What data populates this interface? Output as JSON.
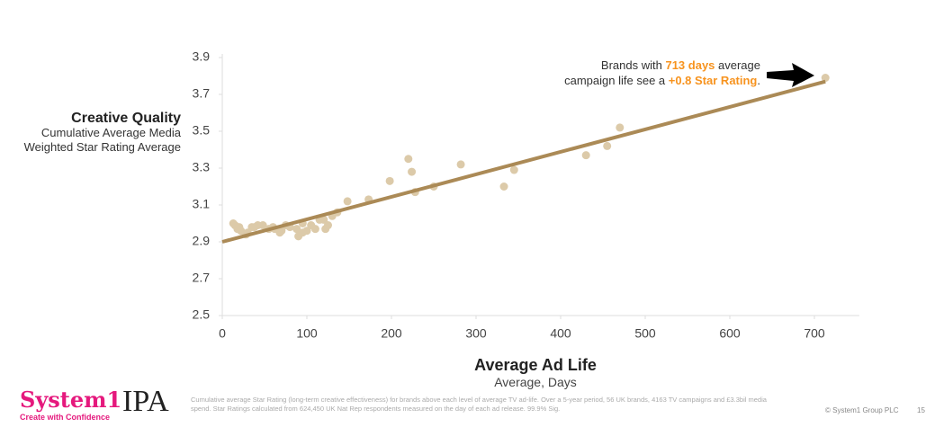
{
  "chart_data": {
    "type": "scatter",
    "ylabel": "Creative Quality",
    "ylabel_sub": [
      "Cumulative Average Media",
      "Weighted Star Rating Average"
    ],
    "xlabel": "Average Ad Life",
    "xlabel_sub": "Average, Days",
    "x": [
      713,
      470,
      455,
      430,
      345,
      333,
      282,
      250,
      228,
      224,
      220,
      198,
      173,
      148,
      136,
      130,
      125,
      122,
      120,
      115,
      110,
      105,
      100,
      95,
      95,
      90,
      88,
      80,
      75,
      70,
      68,
      62,
      60,
      55,
      48,
      42,
      38,
      35,
      30,
      28,
      22,
      20,
      18,
      15,
      13
    ],
    "values": [
      3.79,
      3.52,
      3.42,
      3.37,
      3.29,
      3.2,
      3.32,
      3.2,
      3.17,
      3.28,
      3.35,
      3.23,
      3.13,
      3.12,
      3.06,
      3.04,
      2.99,
      2.97,
      3.02,
      3.02,
      2.97,
      2.99,
      2.96,
      2.95,
      3.0,
      2.93,
      2.97,
      2.98,
      2.99,
      2.96,
      2.95,
      2.97,
      2.98,
      2.97,
      2.99,
      2.99,
      2.98,
      2.98,
      2.95,
      2.94,
      2.96,
      2.98,
      2.97,
      2.99,
      3.0
    ],
    "color": "#dccaa9",
    "trendline": {
      "x": [
        0,
        713
      ],
      "values": [
        2.9,
        3.77
      ],
      "color": "#ab8a56"
    },
    "xlim": [
      0,
      753
    ],
    "xticks": [
      0,
      100,
      200,
      300,
      400,
      500,
      600,
      700
    ],
    "ylim": [
      2.5,
      3.9
    ],
    "yticks": [
      2.5,
      2.7,
      2.9,
      3.1,
      3.3,
      3.5,
      3.7,
      3.9
    ],
    "grid": false,
    "annotation": {
      "line1": [
        "Brands with ",
        "713 days",
        " average"
      ],
      "line2": [
        "campaign life see a ",
        "+0.8 Star Rating",
        "."
      ],
      "highlight_color": "#f7931e"
    }
  },
  "footer": {
    "brand": "System1",
    "tagline": "Create with Confidence",
    "partner": "IPA",
    "note": "Cumulative average Star Rating (long-term creative effectiveness) for brands above each level of average TV ad-life. Over a 5-year period, 56 UK brands, 4163 TV campaigns and £3.3bil media spend. Star Ratings calculated from 624,450 UK Nat Rep respondents measured on the day of each ad release. 99.9% Sig.",
    "copyright": "© System1 Group PLC",
    "page": 15
  }
}
